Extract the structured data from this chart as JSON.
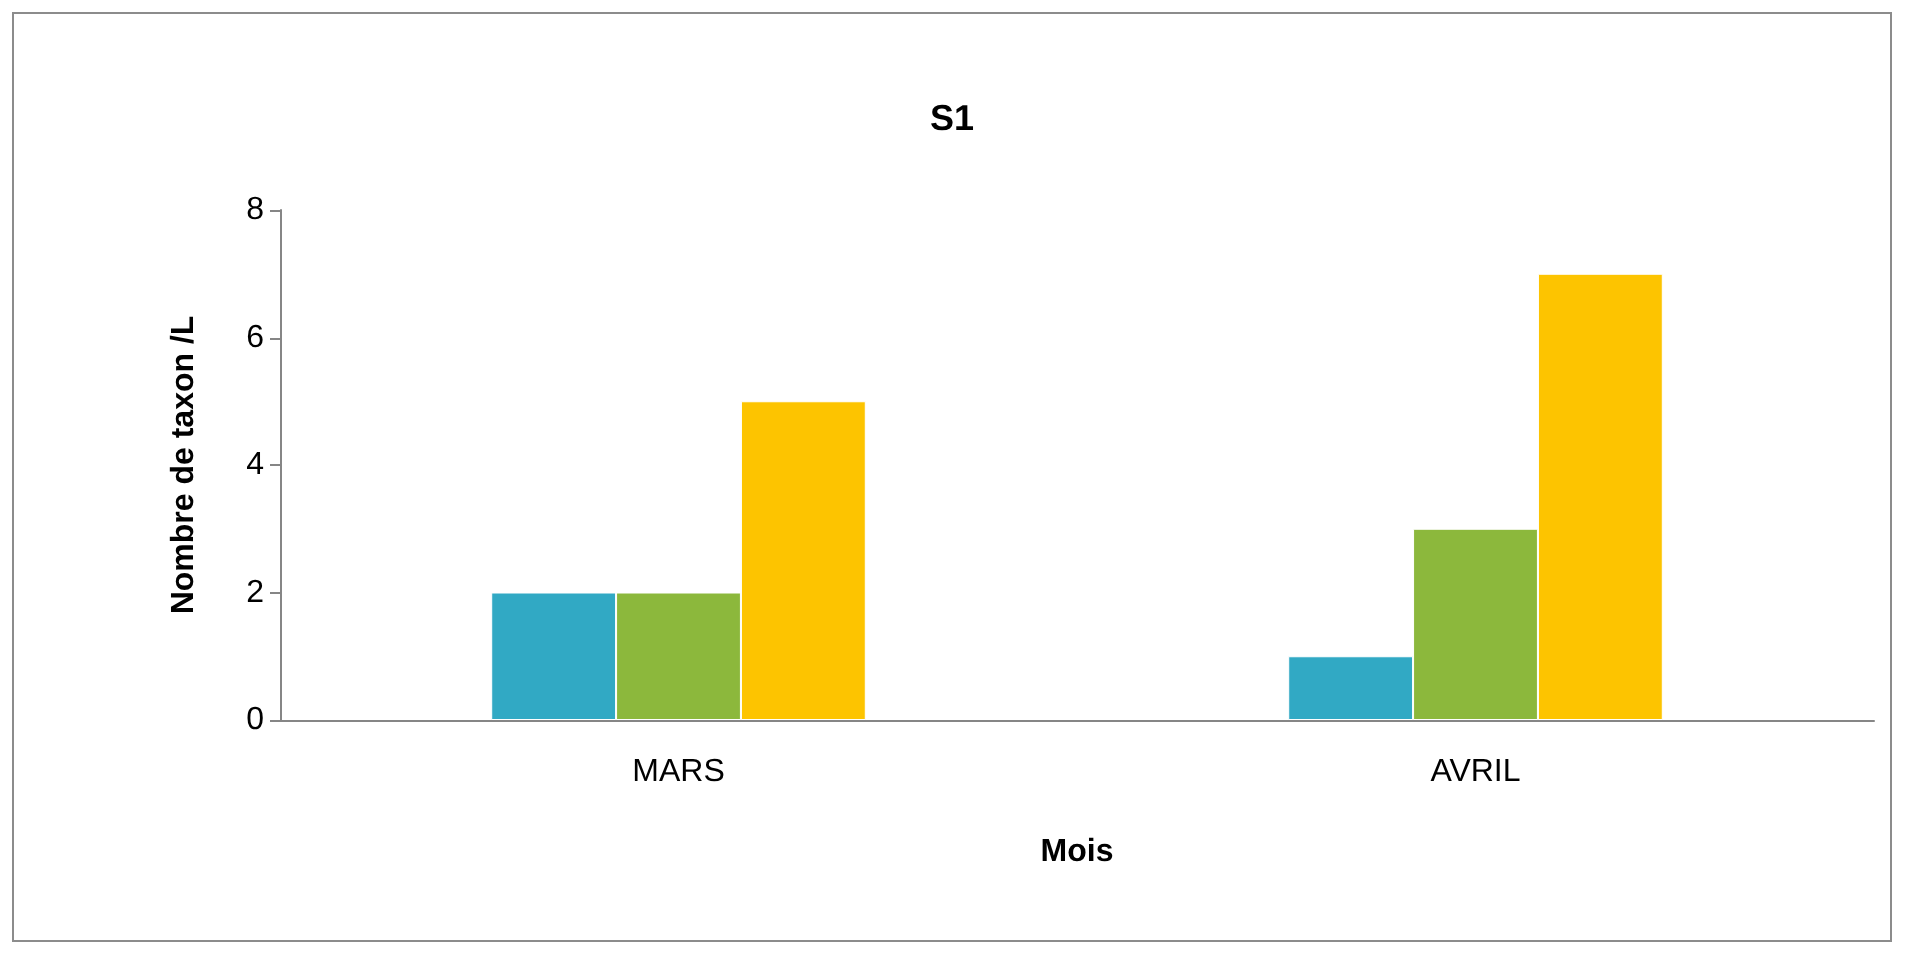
{
  "chart_data": {
    "type": "bar",
    "title": "S1",
    "xlabel": "Mois",
    "ylabel": "Nombre de taxon /L",
    "categories": [
      "MARS",
      "AVRIL"
    ],
    "series": [
      {
        "color": "#31a9c4",
        "values": [
          2,
          1
        ]
      },
      {
        "color": "#8cb83c",
        "values": [
          2,
          3
        ]
      },
      {
        "color": "#fdc400",
        "values": [
          5,
          7
        ]
      }
    ],
    "ylim": [
      0,
      8
    ],
    "yticks": [
      0,
      2,
      4,
      6,
      8
    ]
  }
}
